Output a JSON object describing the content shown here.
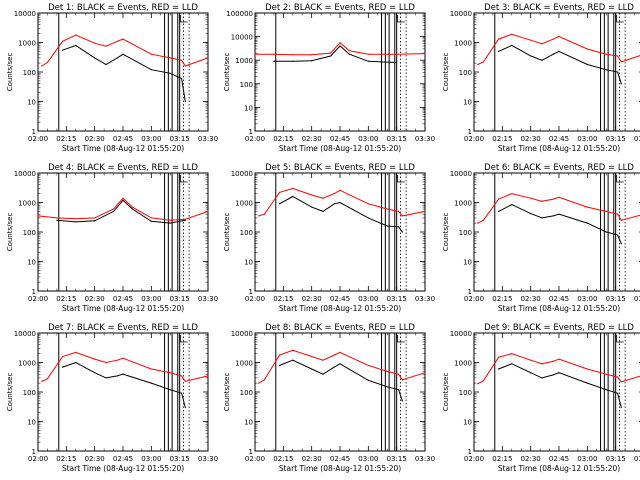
{
  "x_ticks": [
    "02:00",
    "02:15",
    "02:30",
    "02:45",
    "03:00",
    "03:15",
    "03:30"
  ],
  "xlabel": "Start Time (08-Aug-12 01:55:20)",
  "ylabel": "Counts/sec",
  "colors": {
    "events": "#000000",
    "lld": "#ff0000"
  },
  "chart_data": [
    {
      "type": "line",
      "title": "Det 1: BLACK = Events, RED = LLD",
      "ylim": [
        1,
        10000
      ],
      "yscale": "log",
      "y_ticks": [
        "1",
        "10",
        "100",
        "1000",
        "10000"
      ],
      "x": [
        "02:02",
        "02:05",
        "02:13",
        "02:20",
        "02:30",
        "02:36",
        "02:42",
        "02:45",
        "03:00",
        "03:10",
        "03:16",
        "03:18",
        "03:30"
      ],
      "series": [
        {
          "name": "BLACK",
          "values": [
            null,
            null,
            550,
            800,
            300,
            180,
            300,
            400,
            120,
            90,
            60,
            10,
            null
          ]
        },
        {
          "name": "RED",
          "values": [
            160,
            210,
            1100,
            1800,
            950,
            750,
            1100,
            1300,
            400,
            300,
            250,
            160,
            300
          ]
        }
      ]
    },
    {
      "type": "line",
      "title": "Det 2: BLACK = Events, RED = LLD",
      "ylim": [
        1,
        100000
      ],
      "yscale": "log",
      "y_ticks": [
        "1",
        "10",
        "100",
        "1000",
        "10000",
        "100000"
      ],
      "x": [
        "02:00",
        "02:10",
        "02:20",
        "02:30",
        "02:40",
        "02:45",
        "02:50",
        "03:00",
        "03:15",
        "03:30"
      ],
      "series": [
        {
          "name": "BLACK",
          "values": [
            null,
            900,
            900,
            950,
            1500,
            4000,
            1800,
            900,
            800,
            null
          ]
        },
        {
          "name": "RED",
          "values": [
            1800,
            1800,
            1700,
            1700,
            2000,
            5500,
            2500,
            1800,
            1800,
            1900
          ]
        }
      ]
    },
    {
      "type": "line",
      "title": "Det 3: BLACK = Events, RED = LLD",
      "ylim": [
        1,
        10000
      ],
      "yscale": "log",
      "y_ticks": [
        "1",
        "10",
        "100",
        "1000",
        "10000"
      ],
      "x": [
        "02:02",
        "02:05",
        "02:13",
        "02:20",
        "02:30",
        "02:36",
        "02:42",
        "02:45",
        "03:00",
        "03:10",
        "03:16",
        "03:18",
        "03:30"
      ],
      "series": [
        {
          "name": "BLACK",
          "values": [
            null,
            null,
            500,
            800,
            350,
            250,
            400,
            500,
            180,
            120,
            100,
            40,
            null
          ]
        },
        {
          "name": "RED",
          "values": [
            180,
            220,
            1300,
            1900,
            1200,
            900,
            1300,
            1600,
            600,
            400,
            350,
            220,
            400
          ]
        }
      ]
    },
    {
      "type": "line",
      "title": "Det 4: BLACK = Events, RED = LLD",
      "ylim": [
        1,
        10000
      ],
      "yscale": "log",
      "y_ticks": [
        "1",
        "10",
        "100",
        "1000",
        "10000"
      ],
      "x": [
        "02:00",
        "02:10",
        "02:20",
        "02:30",
        "02:40",
        "02:45",
        "02:50",
        "03:00",
        "03:10",
        "03:18",
        "03:30"
      ],
      "series": [
        {
          "name": "BLACK",
          "values": [
            null,
            250,
            220,
            240,
            500,
            1200,
            600,
            230,
            200,
            250,
            null
          ]
        },
        {
          "name": "RED",
          "values": [
            350,
            300,
            280,
            300,
            600,
            1400,
            700,
            300,
            250,
            270,
            500
          ]
        }
      ]
    },
    {
      "type": "line",
      "title": "Det 5: BLACK = Events, RED = LLD",
      "ylim": [
        1,
        10000
      ],
      "yscale": "log",
      "y_ticks": [
        "1",
        "10",
        "100",
        "1000",
        "10000"
      ],
      "x": [
        "02:02",
        "02:05",
        "02:13",
        "02:20",
        "02:30",
        "02:36",
        "02:42",
        "02:45",
        "03:00",
        "03:10",
        "03:16",
        "03:18",
        "03:30"
      ],
      "series": [
        {
          "name": "BLACK",
          "values": [
            null,
            null,
            900,
            1600,
            700,
            500,
            900,
            1000,
            300,
            160,
            150,
            100,
            null
          ]
        },
        {
          "name": "RED",
          "values": [
            350,
            400,
            2200,
            3000,
            1800,
            1400,
            2000,
            2600,
            900,
            600,
            500,
            350,
            500
          ]
        }
      ]
    },
    {
      "type": "line",
      "title": "Det 6: BLACK = Events, RED = LLD",
      "ylim": [
        1,
        10000
      ],
      "yscale": "log",
      "y_ticks": [
        "1",
        "10",
        "100",
        "1000",
        "10000"
      ],
      "x": [
        "02:02",
        "02:05",
        "02:13",
        "02:20",
        "02:30",
        "02:36",
        "02:42",
        "02:45",
        "03:00",
        "03:10",
        "03:16",
        "03:18",
        "03:30"
      ],
      "series": [
        {
          "name": "BLACK",
          "values": [
            null,
            null,
            500,
            850,
            420,
            300,
            350,
            400,
            200,
            100,
            80,
            40,
            null
          ]
        },
        {
          "name": "RED",
          "values": [
            200,
            250,
            1300,
            2000,
            1400,
            1100,
            1300,
            1500,
            700,
            500,
            400,
            250,
            400
          ]
        }
      ]
    },
    {
      "type": "line",
      "title": "Det 7: BLACK = Events, RED = LLD",
      "ylim": [
        1,
        10000
      ],
      "yscale": "log",
      "y_ticks": [
        "1",
        "10",
        "100",
        "1000",
        "10000"
      ],
      "x": [
        "02:02",
        "02:05",
        "02:13",
        "02:20",
        "02:30",
        "02:36",
        "02:42",
        "02:45",
        "03:00",
        "03:10",
        "03:16",
        "03:18",
        "03:30"
      ],
      "series": [
        {
          "name": "BLACK",
          "values": [
            null,
            null,
            700,
            1000,
            450,
            300,
            350,
            400,
            200,
            120,
            90,
            30,
            null
          ]
        },
        {
          "name": "RED",
          "values": [
            230,
            280,
            1600,
            2200,
            1300,
            1000,
            1200,
            1400,
            600,
            450,
            350,
            230,
            350
          ]
        }
      ]
    },
    {
      "type": "line",
      "title": "Det 8: BLACK = Events, RED = LLD",
      "ylim": [
        1,
        10000
      ],
      "yscale": "log",
      "y_ticks": [
        "1",
        "10",
        "100",
        "1000",
        "10000"
      ],
      "x": [
        "02:02",
        "02:05",
        "02:13",
        "02:20",
        "02:30",
        "02:36",
        "02:42",
        "02:45",
        "03:00",
        "03:10",
        "03:16",
        "03:18",
        "03:30"
      ],
      "series": [
        {
          "name": "BLACK",
          "values": [
            null,
            null,
            800,
            1200,
            600,
            400,
            700,
            900,
            250,
            150,
            120,
            50,
            null
          ]
        },
        {
          "name": "RED",
          "values": [
            200,
            260,
            1800,
            2600,
            1600,
            1200,
            1800,
            2200,
            800,
            500,
            400,
            260,
            450
          ]
        }
      ]
    },
    {
      "type": "line",
      "title": "Det 9: BLACK = Events, RED = LLD",
      "ylim": [
        1,
        10000
      ],
      "yscale": "log",
      "y_ticks": [
        "1",
        "10",
        "100",
        "1000",
        "10000"
      ],
      "x": [
        "02:02",
        "02:05",
        "02:13",
        "02:20",
        "02:30",
        "02:36",
        "02:42",
        "02:45",
        "03:00",
        "03:10",
        "03:16",
        "03:18",
        "03:30"
      ],
      "series": [
        {
          "name": "BLACK",
          "values": [
            null,
            null,
            600,
            900,
            450,
            300,
            380,
            450,
            200,
            120,
            90,
            30,
            null
          ]
        },
        {
          "name": "RED",
          "values": [
            190,
            240,
            1500,
            2000,
            1200,
            900,
            1100,
            1300,
            600,
            400,
            320,
            220,
            380
          ]
        }
      ]
    }
  ]
}
